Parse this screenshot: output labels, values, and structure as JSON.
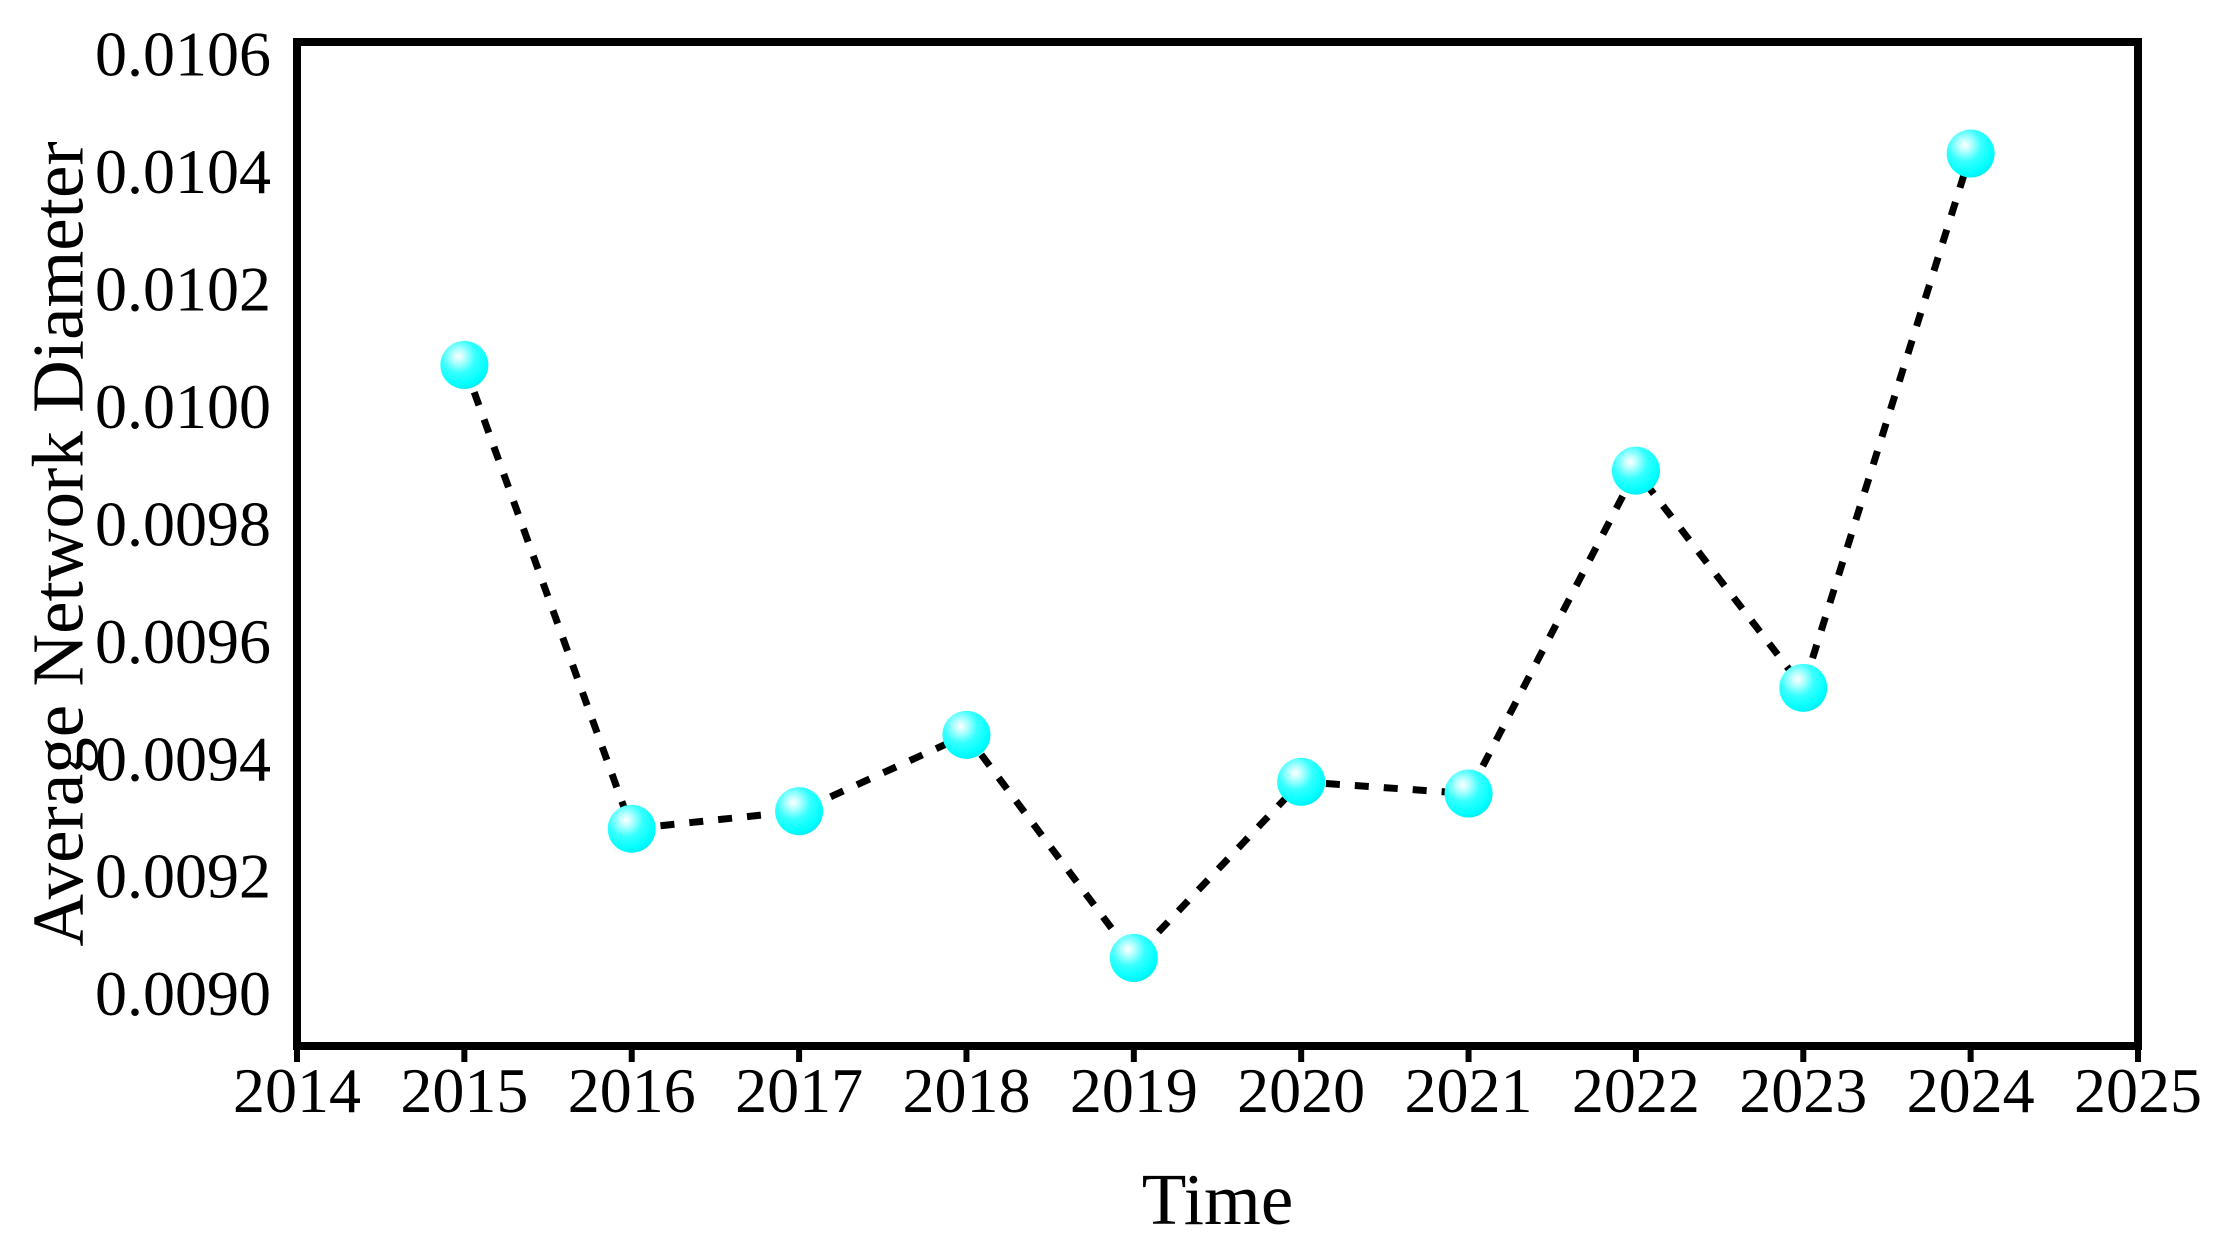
{
  "chart_data": {
    "type": "line",
    "title": "",
    "xlabel": "Time",
    "ylabel": "Average Network Diameter",
    "x": [
      2015,
      2016,
      2017,
      2018,
      2019,
      2020,
      2021,
      2022,
      2023,
      2024
    ],
    "series": [
      {
        "name": "Average Network Diameter",
        "values": [
          0.01007,
          0.00928,
          0.00931,
          0.00944,
          0.00906,
          0.00936,
          0.00934,
          0.00989,
          0.00952,
          0.01043
        ]
      }
    ],
    "xlim": [
      2014,
      2025
    ],
    "ylim": [
      0.00891,
      0.01062
    ],
    "x_ticks": [
      {
        "value": 2014,
        "label": "2014"
      },
      {
        "value": 2015,
        "label": "2015"
      },
      {
        "value": 2016,
        "label": "2016"
      },
      {
        "value": 2017,
        "label": "2017"
      },
      {
        "value": 2018,
        "label": "2018"
      },
      {
        "value": 2019,
        "label": "2019"
      },
      {
        "value": 2020,
        "label": "2020"
      },
      {
        "value": 2021,
        "label": "2021"
      },
      {
        "value": 2022,
        "label": "2022"
      },
      {
        "value": 2023,
        "label": "2023"
      },
      {
        "value": 2024,
        "label": "2024"
      },
      {
        "value": 2025,
        "label": "2025"
      }
    ],
    "y_ticks": [
      {
        "value": 0.009,
        "label": "0.0090"
      },
      {
        "value": 0.0092,
        "label": "0.0092"
      },
      {
        "value": 0.0094,
        "label": "0.0094"
      },
      {
        "value": 0.0096,
        "label": "0.0096"
      },
      {
        "value": 0.0098,
        "label": "0.0098"
      },
      {
        "value": 0.01,
        "label": "0.0100"
      },
      {
        "value": 0.0102,
        "label": "0.0102"
      },
      {
        "value": 0.0104,
        "label": "0.0104"
      },
      {
        "value": 0.0106,
        "label": "0.0106"
      }
    ],
    "grid": false,
    "legend": "none",
    "line": {
      "color": "#000000",
      "style": "dashed",
      "width": 7
    },
    "marker": {
      "shape": "sphere",
      "color": "#00ffff",
      "highlight": "#ffffff",
      "edge": "#00e0ea",
      "radius": 24
    },
    "axis_color": "#000000"
  }
}
